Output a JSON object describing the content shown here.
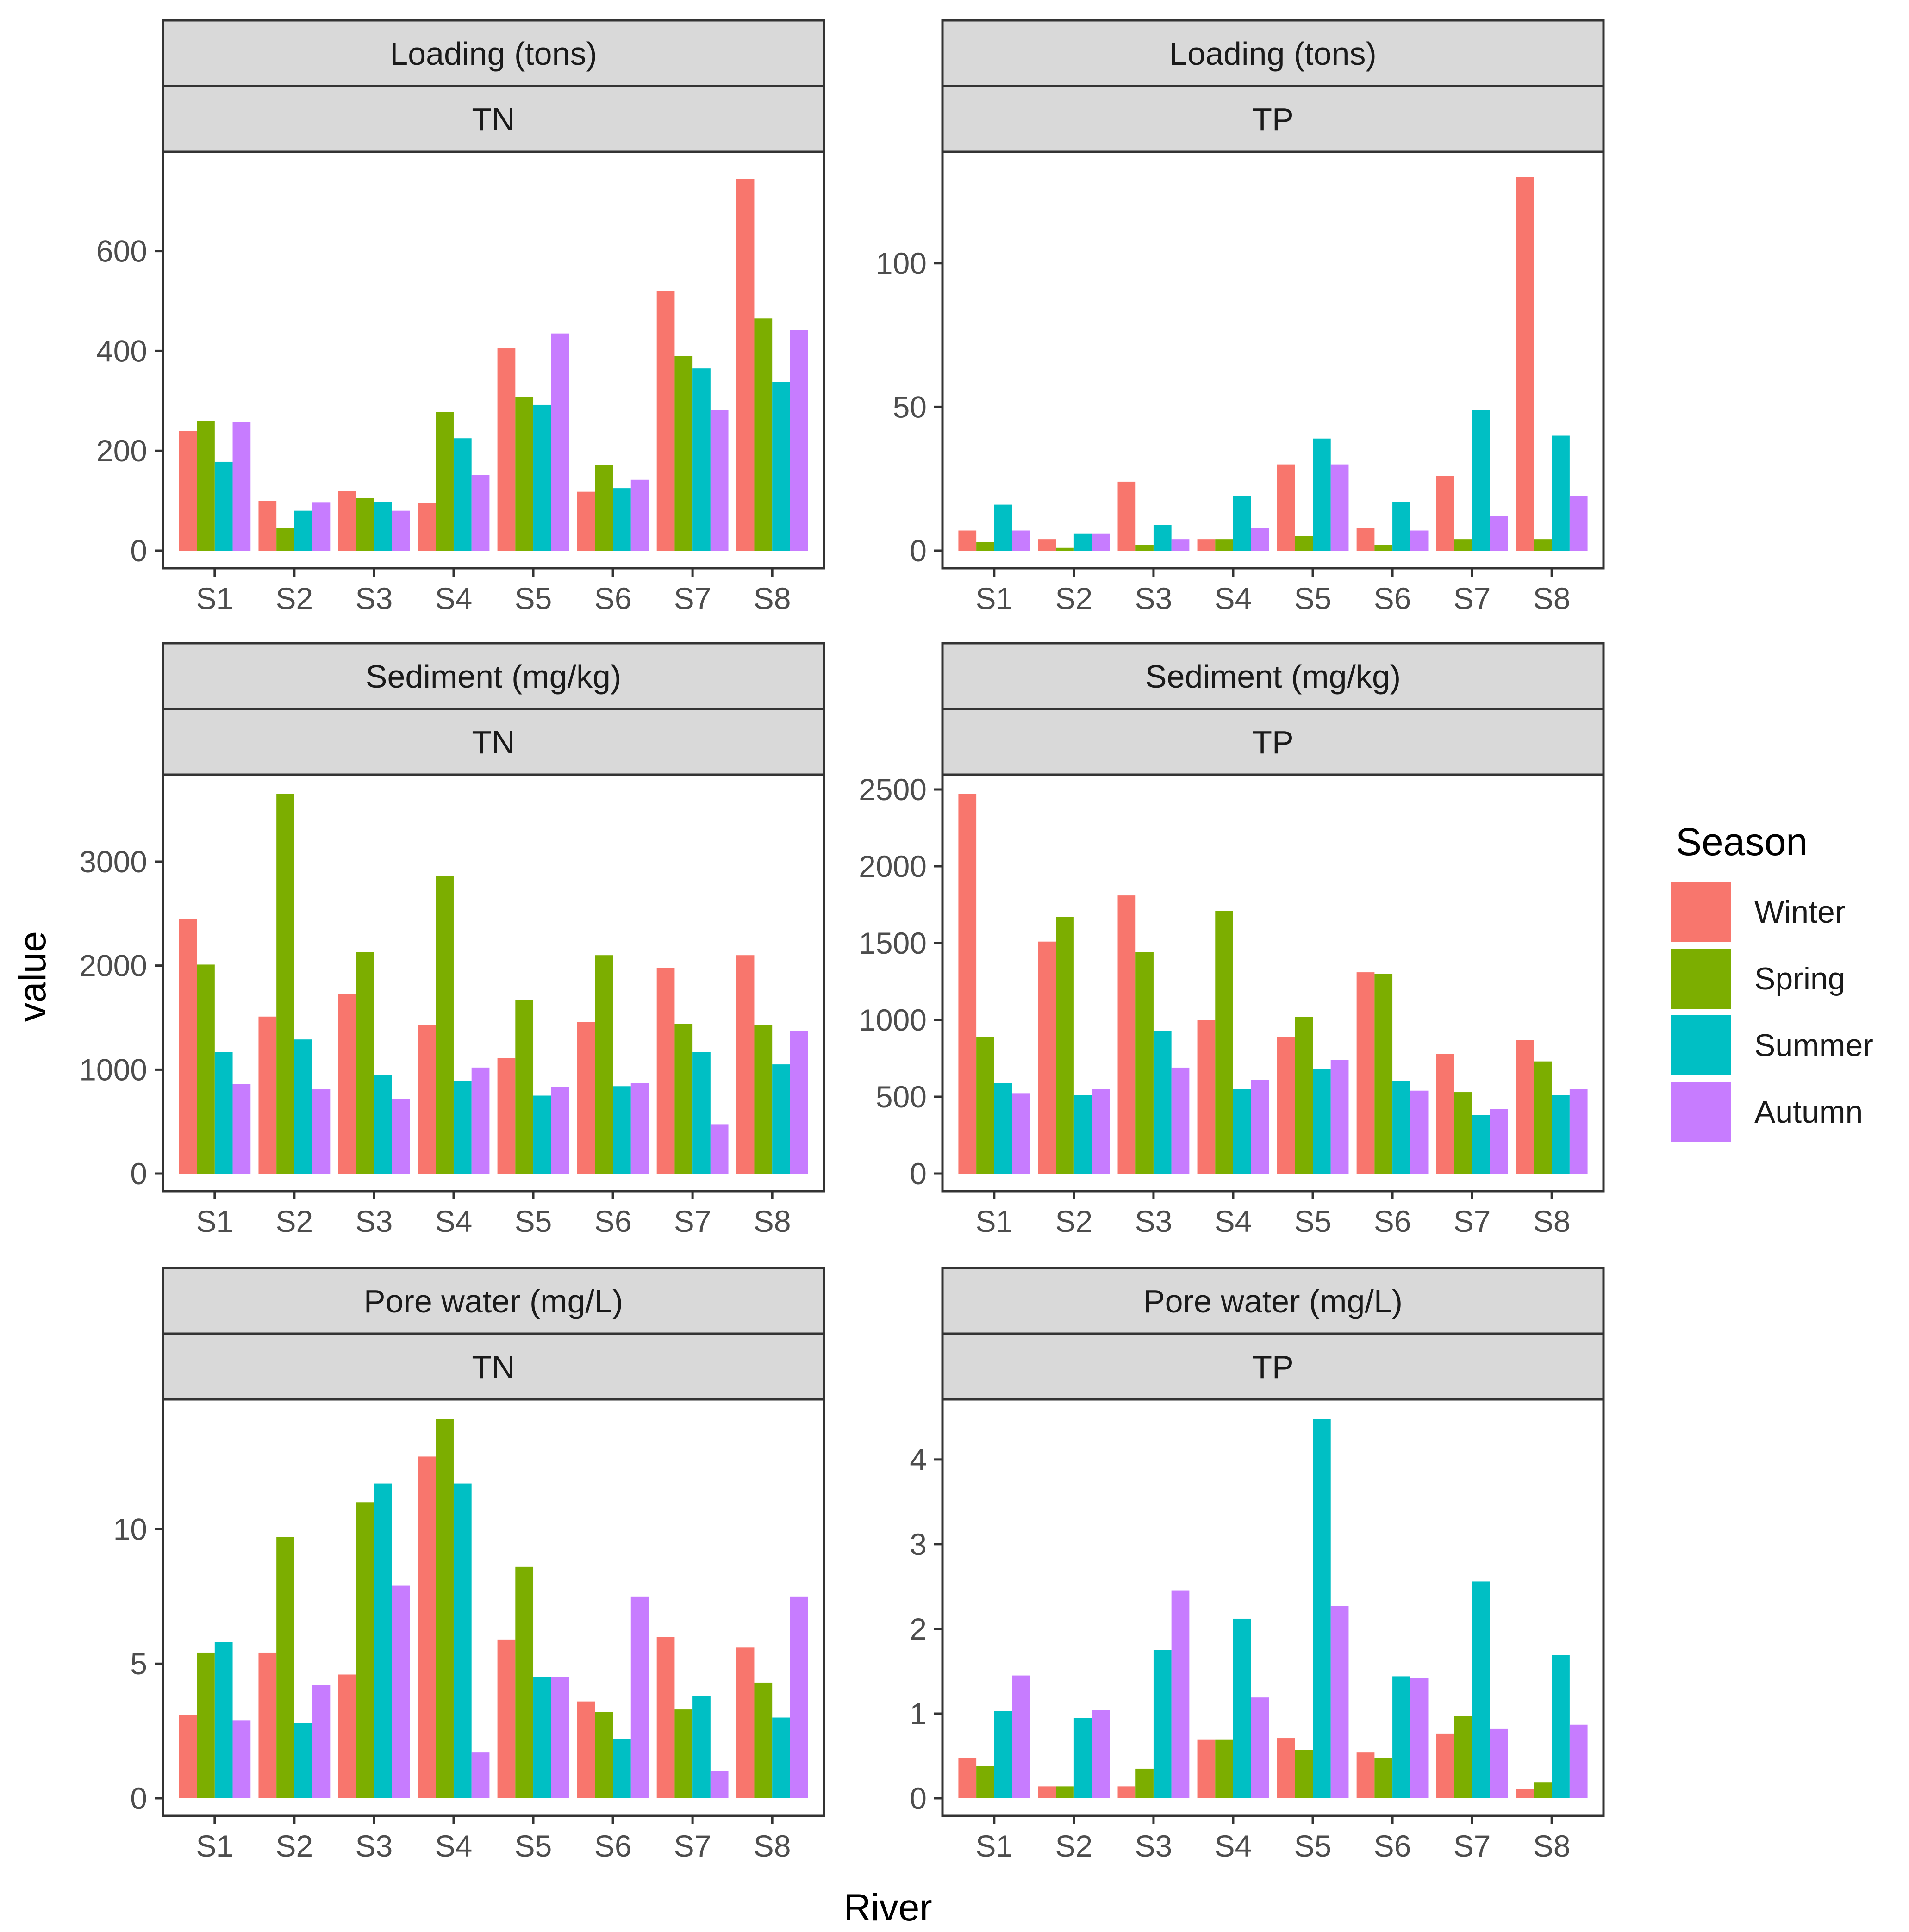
{
  "axis": {
    "x_title": "River",
    "y_title": "value"
  },
  "legend": {
    "title": "Season",
    "placement": "right",
    "items": [
      {
        "label": "Winter",
        "color": "#F8766D"
      },
      {
        "label": "Spring",
        "color": "#7CAE00"
      },
      {
        "label": "Summer",
        "color": "#00BFC4"
      },
      {
        "label": "Autumn",
        "color": "#C77CFF"
      }
    ]
  },
  "colors": {
    "strip_fill": "#d9d9d9",
    "panel_border": "#333333",
    "axis_text": "#4d4d4d",
    "title_text": "#000000"
  },
  "chart_data": [
    {
      "type": "bar",
      "strip_top": "Loading (tons)",
      "strip_bottom": "TN",
      "categories": [
        "S1",
        "S2",
        "S3",
        "S4",
        "S5",
        "S6",
        "S7",
        "S8"
      ],
      "ylim": [
        0,
        760
      ],
      "yticks": [
        0,
        200,
        400,
        600
      ],
      "grid": false,
      "series": [
        {
          "name": "Winter",
          "values": [
            240,
            100,
            120,
            95,
            405,
            118,
            520,
            745
          ]
        },
        {
          "name": "Spring",
          "values": [
            260,
            45,
            105,
            278,
            308,
            172,
            390,
            465
          ]
        },
        {
          "name": "Summer",
          "values": [
            178,
            80,
            98,
            225,
            292,
            125,
            365,
            338
          ]
        },
        {
          "name": "Autumn",
          "values": [
            258,
            97,
            80,
            152,
            435,
            142,
            282,
            442
          ]
        }
      ]
    },
    {
      "type": "bar",
      "strip_top": "Loading (tons)",
      "strip_bottom": "TP",
      "categories": [
        "S1",
        "S2",
        "S3",
        "S4",
        "S5",
        "S6",
        "S7",
        "S8"
      ],
      "ylim": [
        0,
        132
      ],
      "yticks": [
        0,
        50,
        100
      ],
      "grid": false,
      "series": [
        {
          "name": "Winter",
          "values": [
            7,
            4,
            24,
            4,
            30,
            8,
            26,
            130
          ]
        },
        {
          "name": "Spring",
          "values": [
            3,
            1,
            2,
            4,
            5,
            2,
            4,
            4
          ]
        },
        {
          "name": "Summer",
          "values": [
            16,
            6,
            9,
            19,
            39,
            17,
            49,
            40
          ]
        },
        {
          "name": "Autumn",
          "values": [
            7,
            6,
            4,
            8,
            30,
            7,
            12,
            19
          ]
        }
      ]
    },
    {
      "type": "bar",
      "strip_top": "Sediment (mg/kg)",
      "strip_bottom": "TN",
      "categories": [
        "S1",
        "S2",
        "S3",
        "S4",
        "S5",
        "S6",
        "S7",
        "S8"
      ],
      "ylim": [
        0,
        3650
      ],
      "yticks": [
        0,
        1000,
        2000,
        3000
      ],
      "grid": false,
      "series": [
        {
          "name": "Winter",
          "values": [
            2450,
            1510,
            1730,
            1430,
            1110,
            1460,
            1980,
            2100
          ]
        },
        {
          "name": "Spring",
          "values": [
            2010,
            3650,
            2130,
            2860,
            1670,
            2100,
            1440,
            1430
          ]
        },
        {
          "name": "Summer",
          "values": [
            1170,
            1290,
            950,
            890,
            750,
            840,
            1170,
            1050
          ]
        },
        {
          "name": "Autumn",
          "values": [
            860,
            810,
            720,
            1020,
            830,
            870,
            470,
            1370
          ]
        }
      ]
    },
    {
      "type": "bar",
      "strip_top": "Sediment (mg/kg)",
      "strip_bottom": "TP",
      "categories": [
        "S1",
        "S2",
        "S3",
        "S4",
        "S5",
        "S6",
        "S7",
        "S8"
      ],
      "ylim": [
        0,
        2470
      ],
      "yticks": [
        0,
        500,
        1000,
        1500,
        2000,
        2500
      ],
      "grid": false,
      "series": [
        {
          "name": "Winter",
          "values": [
            2470,
            1510,
            1810,
            1000,
            890,
            1310,
            780,
            870
          ]
        },
        {
          "name": "Spring",
          "values": [
            890,
            1670,
            1440,
            1710,
            1020,
            1300,
            530,
            730
          ]
        },
        {
          "name": "Summer",
          "values": [
            590,
            510,
            930,
            550,
            680,
            600,
            380,
            510
          ]
        },
        {
          "name": "Autumn",
          "values": [
            520,
            550,
            690,
            610,
            740,
            540,
            420,
            550
          ]
        }
      ]
    },
    {
      "type": "bar",
      "strip_top": "Pore water (mg/L)",
      "strip_bottom": "TN",
      "categories": [
        "S1",
        "S2",
        "S3",
        "S4",
        "S5",
        "S6",
        "S7",
        "S8"
      ],
      "ylim": [
        0,
        14.1
      ],
      "yticks": [
        0,
        5,
        10
      ],
      "grid": false,
      "series": [
        {
          "name": "Winter",
          "values": [
            3.1,
            5.4,
            4.6,
            12.7,
            5.9,
            3.6,
            6.0,
            5.6
          ]
        },
        {
          "name": "Spring",
          "values": [
            5.4,
            9.7,
            11.0,
            14.1,
            8.6,
            3.2,
            3.3,
            4.3
          ]
        },
        {
          "name": "Summer",
          "values": [
            5.8,
            2.8,
            11.7,
            11.7,
            4.5,
            2.2,
            3.8,
            3.0
          ]
        },
        {
          "name": "Autumn",
          "values": [
            2.9,
            4.2,
            7.9,
            1.7,
            4.5,
            7.5,
            1.0,
            7.5
          ]
        }
      ]
    },
    {
      "type": "bar",
      "strip_top": "Pore water (mg/L)",
      "strip_bottom": "TP",
      "categories": [
        "S1",
        "S2",
        "S3",
        "S4",
        "S5",
        "S6",
        "S7",
        "S8"
      ],
      "ylim": [
        0,
        4.48
      ],
      "yticks": [
        0,
        1,
        2,
        3,
        4
      ],
      "grid": false,
      "series": [
        {
          "name": "Winter",
          "values": [
            0.47,
            0.14,
            0.14,
            0.69,
            0.71,
            0.54,
            0.76,
            0.11
          ]
        },
        {
          "name": "Spring",
          "values": [
            0.38,
            0.14,
            0.35,
            0.69,
            0.57,
            0.48,
            0.97,
            0.19
          ]
        },
        {
          "name": "Summer",
          "values": [
            1.03,
            0.95,
            1.75,
            2.12,
            4.48,
            1.44,
            2.56,
            1.69
          ]
        },
        {
          "name": "Autumn",
          "values": [
            1.45,
            1.04,
            2.45,
            1.19,
            2.27,
            1.42,
            0.82,
            0.87
          ]
        }
      ]
    }
  ]
}
